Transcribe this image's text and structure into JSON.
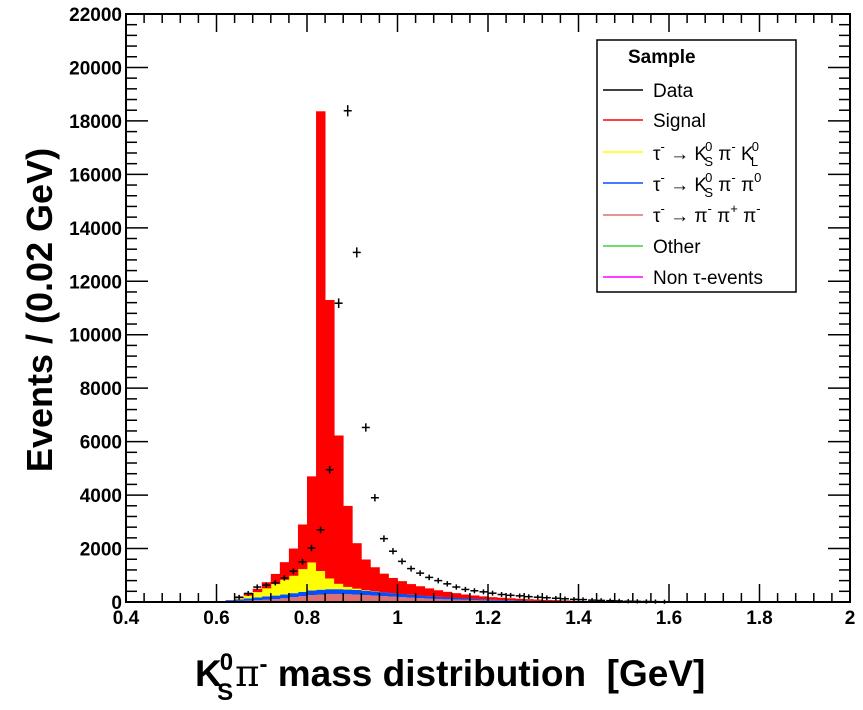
{
  "chart_data": {
    "type": "bar",
    "stacked": true,
    "bin_width": 0.02,
    "x_edges_start": 0.6,
    "xlim": [
      0.4,
      2.0
    ],
    "ylim": [
      0,
      22000
    ],
    "xlabel": {
      "main": "K",
      "sup": "0",
      "sub": "S",
      "pi": "π",
      "pisup": "-",
      "rest": " mass distribution  [GeV]"
    },
    "ylabel": "Events / (0.02 GeV)",
    "x_ticks": [
      "0.4",
      "0.6",
      "0.8",
      "1",
      "1.2",
      "1.4",
      "1.6",
      "1.8",
      "2"
    ],
    "x_tick_values": [
      0.4,
      0.6,
      0.8,
      1.0,
      1.2,
      1.4,
      1.6,
      1.8,
      2.0
    ],
    "y_ticks": [
      "0",
      "2000",
      "4000",
      "6000",
      "8000",
      "10000",
      "12000",
      "14000",
      "16000",
      "18000",
      "20000",
      "22000"
    ],
    "y_tick_values": [
      0,
      2000,
      4000,
      6000,
      8000,
      10000,
      12000,
      14000,
      16000,
      18000,
      20000,
      22000
    ],
    "legend": {
      "title": "Sample",
      "position": "top-right",
      "entries": [
        {
          "label": "Data",
          "color": "#000000"
        },
        {
          "label": "Signal",
          "color": "#ff0000"
        },
        {
          "label": "τ⁻ → K⁰S π⁻ K⁰L",
          "color": "#ffff00"
        },
        {
          "label": "τ⁻ → K⁰S π⁻ π⁰",
          "color": "#0050ff"
        },
        {
          "label": "τ⁻ → π⁻ π⁺ π⁻",
          "color": "#e07070"
        },
        {
          "label": "Other",
          "color": "#40d040"
        },
        {
          "label": "Non τ-events",
          "color": "#ff00ff"
        }
      ]
    },
    "series": [
      {
        "name": "Non τ-events",
        "color": "#ff00ff",
        "values": [
          0,
          0,
          0,
          0,
          0,
          0,
          0,
          0,
          0,
          0,
          0,
          0,
          0,
          0,
          0,
          0,
          0,
          0,
          0,
          0,
          0,
          0,
          0,
          0,
          0,
          0,
          0,
          0,
          0,
          0,
          0,
          0,
          0,
          0,
          0,
          0,
          0,
          0,
          0,
          0,
          0,
          0,
          0,
          0,
          0,
          0,
          0,
          0,
          0,
          0,
          0,
          0,
          0,
          0,
          0,
          0,
          0,
          0,
          0,
          0,
          0,
          0,
          0,
          0,
          0,
          0,
          0,
          0,
          0,
          0
        ]
      },
      {
        "name": "Other",
        "color": "#40d040",
        "values": [
          0,
          0,
          0,
          0,
          0,
          0,
          0,
          0,
          0,
          0,
          0,
          0,
          0,
          0,
          0,
          0,
          0,
          0,
          0,
          0,
          0,
          0,
          0,
          0,
          0,
          0,
          0,
          0,
          0,
          0,
          0,
          0,
          0,
          0,
          0,
          0,
          0,
          0,
          0,
          0,
          0,
          0,
          0,
          0,
          0,
          0,
          0,
          0,
          0,
          0,
          0,
          0,
          0,
          0,
          0,
          0,
          0,
          0,
          0,
          0,
          0,
          0,
          0,
          0,
          0,
          0,
          0,
          0,
          0,
          0
        ]
      },
      {
        "name": "τ⁻ → π⁻ π⁺ π⁻",
        "color": "#e07070",
        "values": [
          10,
          25,
          40,
          55,
          70,
          90,
          110,
          140,
          180,
          220,
          260,
          280,
          300,
          300,
          290,
          280,
          260,
          240,
          220,
          200,
          180,
          160,
          145,
          130,
          115,
          100,
          90,
          80,
          70,
          60,
          50,
          45,
          40,
          35,
          30,
          25,
          20,
          18,
          15,
          12,
          10,
          8,
          6,
          5,
          4,
          3,
          2,
          2,
          1,
          1,
          0,
          0,
          0,
          0,
          0,
          0,
          0,
          0,
          0,
          0,
          0,
          0,
          0,
          0,
          0,
          0,
          0,
          0,
          0,
          0
        ]
      },
      {
        "name": "τ⁻ → K⁰S π⁻ π⁰",
        "color": "#0050ff",
        "values": [
          20,
          40,
          60,
          80,
          100,
          120,
          130,
          140,
          150,
          160,
          170,
          180,
          180,
          180,
          175,
          170,
          160,
          150,
          140,
          130,
          120,
          110,
          100,
          90,
          80,
          70,
          60,
          50,
          45,
          40,
          35,
          30,
          25,
          20,
          18,
          15,
          12,
          10,
          8,
          6,
          5,
          4,
          3,
          2,
          2,
          1,
          1,
          0,
          0,
          0,
          0,
          0,
          0,
          0,
          0,
          0,
          0,
          0,
          0,
          0,
          0,
          0,
          0,
          0,
          0,
          0,
          0,
          0,
          0,
          0
        ]
      },
      {
        "name": "τ⁻ → K⁰S π⁻ K⁰L",
        "color": "#ffff00",
        "values": [
          0,
          0,
          40,
          100,
          200,
          300,
          430,
          550,
          650,
          850,
          1050,
          700,
          400,
          200,
          100,
          50,
          20,
          10,
          0,
          0,
          0,
          0,
          0,
          0,
          0,
          0,
          0,
          0,
          0,
          0,
          0,
          0,
          0,
          0,
          0,
          0,
          0,
          0,
          0,
          0,
          0,
          0,
          0,
          0,
          0,
          0,
          0,
          0,
          0,
          0,
          0,
          0,
          0,
          0,
          0,
          0,
          0,
          0,
          0,
          0,
          0,
          0,
          0,
          0,
          0,
          0,
          0,
          0,
          0,
          0
        ]
      },
      {
        "name": "Signal",
        "color": "#ff0000",
        "values": [
          0,
          5,
          45,
          105,
          125,
          230,
          380,
          660,
          1020,
          1670,
          3220,
          17200,
          10420,
          5550,
          3030,
          1700,
          1150,
          900,
          700,
          570,
          480,
          400,
          345,
          290,
          245,
          210,
          180,
          150,
          130,
          110,
          95,
          85,
          75,
          65,
          57,
          50,
          45,
          42,
          37,
          32,
          25,
          20,
          18,
          15,
          12,
          10,
          8,
          7,
          5,
          4,
          3,
          3,
          2,
          2,
          1,
          1,
          0,
          0,
          0,
          0,
          0,
          0,
          0,
          0,
          0,
          0,
          0,
          0,
          0,
          0
        ]
      }
    ],
    "data_points": {
      "name": "Data",
      "x": [
        0.65,
        0.67,
        0.69,
        0.71,
        0.73,
        0.75,
        0.77,
        0.79,
        0.81,
        0.83,
        0.85,
        0.87,
        0.89,
        0.91,
        0.93,
        0.95,
        0.97,
        0.99,
        1.01,
        1.03,
        1.05,
        1.07,
        1.09,
        1.11,
        1.13,
        1.15,
        1.17,
        1.19,
        1.21,
        1.23,
        1.25,
        1.27,
        1.29,
        1.31,
        1.33,
        1.35,
        1.37,
        1.39,
        1.41,
        1.43,
        1.45,
        1.47,
        1.49,
        1.51,
        1.53,
        1.55,
        1.57,
        1.59
      ],
      "y": [
        180,
        320,
        560,
        630,
        720,
        900,
        1150,
        1500,
        2020,
        2700,
        4950,
        11180,
        18380,
        13080,
        6530,
        3900,
        2370,
        1900,
        1520,
        1250,
        1080,
        920,
        800,
        680,
        560,
        470,
        420,
        380,
        330,
        280,
        250,
        230,
        200,
        180,
        160,
        140,
        120,
        100,
        90,
        70,
        60,
        50,
        40,
        30,
        25,
        20,
        15,
        10
      ]
    }
  }
}
